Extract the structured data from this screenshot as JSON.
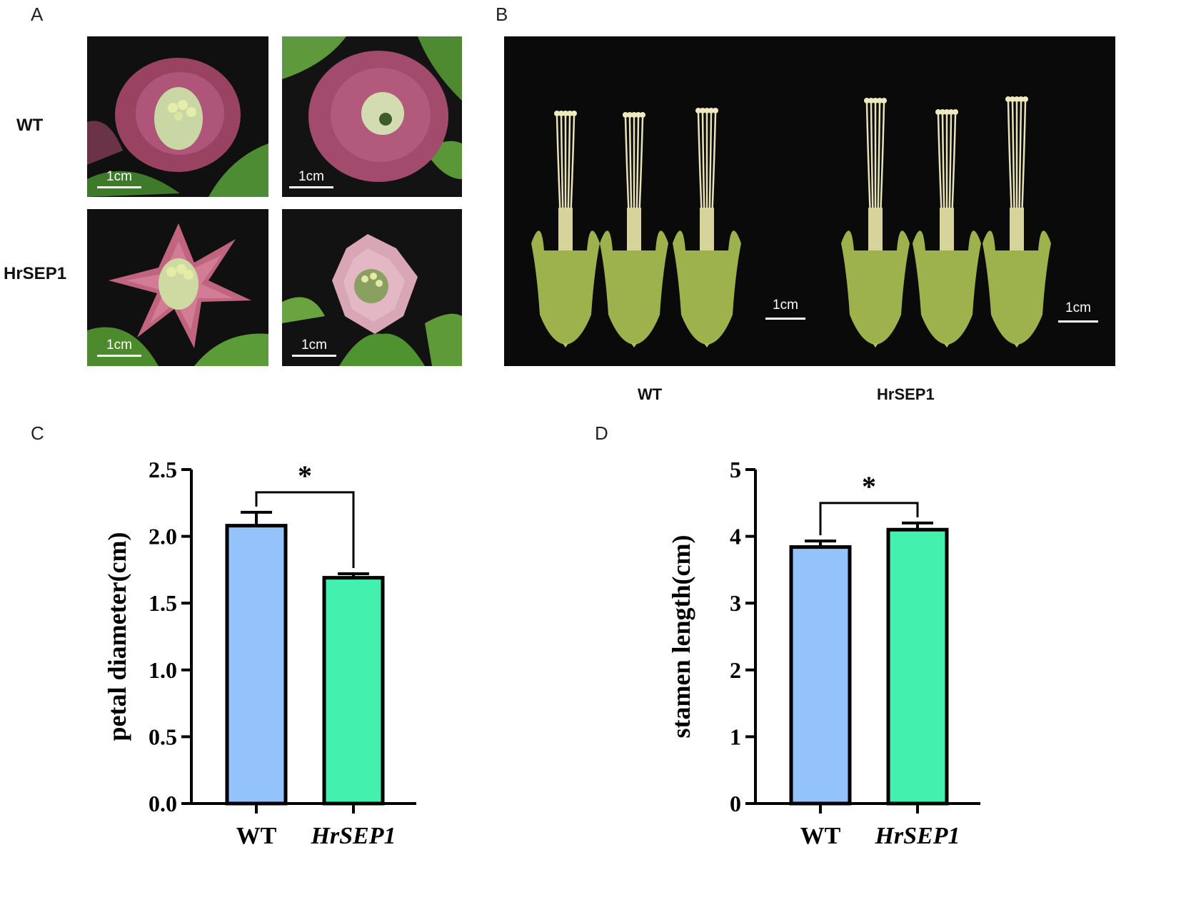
{
  "panels": {
    "a": {
      "letter": "A",
      "row_labels": [
        "WT",
        "HrSEP1"
      ],
      "scale": "1cm"
    },
    "b": {
      "letter": "B",
      "scale": "1cm",
      "group_labels": [
        "WT",
        "HrSEP1"
      ]
    },
    "c": {
      "letter": "C"
    },
    "d": {
      "letter": "D"
    }
  },
  "chart_data": [
    {
      "type": "bar",
      "categories": [
        "WT",
        "HrSEP1"
      ],
      "values": [
        2.08,
        1.69
      ],
      "errors": [
        0.1,
        0.03
      ],
      "ylabel": "petal diameter(cm)",
      "ylim": [
        0,
        2.5
      ],
      "yticks": [
        "0.0",
        "0.5",
        "1.0",
        "1.5",
        "2.0",
        "2.5"
      ],
      "significance": "*",
      "colors": [
        "#94c2fb",
        "#44f0ad"
      ]
    },
    {
      "type": "bar",
      "categories": [
        "WT",
        "HrSEP1"
      ],
      "values": [
        3.84,
        4.1
      ],
      "errors": [
        0.09,
        0.1
      ],
      "ylabel": "stamen length(cm)",
      "ylim": [
        0,
        5
      ],
      "yticks": [
        "0",
        "1",
        "2",
        "3",
        "4",
        "5"
      ],
      "significance": "*",
      "colors": [
        "#94c2fb",
        "#44f0ad"
      ]
    }
  ]
}
